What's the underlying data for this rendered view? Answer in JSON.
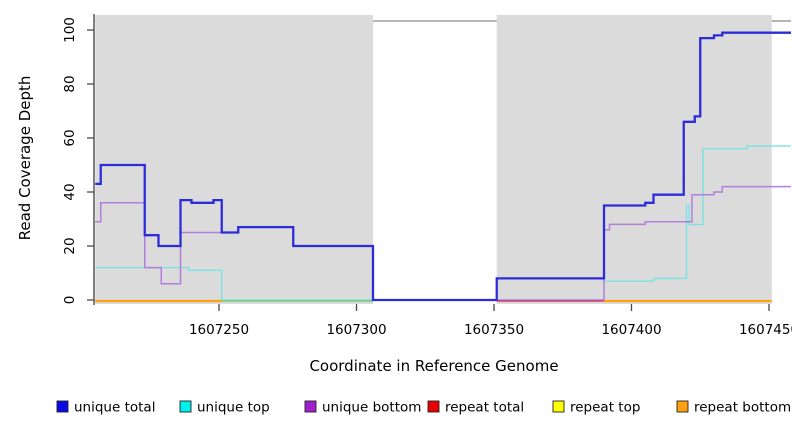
{
  "chart_data": {
    "type": "line",
    "subtype": "step-coverage-plot",
    "title": "",
    "xlabel": "Coordinate in Reference Genome",
    "ylabel": "Read Coverage Depth",
    "xlim": [
      1607205,
      1607458
    ],
    "ylim": [
      0,
      103
    ],
    "grid": "off",
    "plot_background": "#DBDBDB",
    "no_data_background": "#FFFFFF",
    "axis_color": "#4A4A4A",
    "x_ticks": [
      {
        "value": 1607250,
        "label": "1607250"
      },
      {
        "value": 1607300,
        "label": "1607300"
      },
      {
        "value": 1607350,
        "label": "1607350"
      },
      {
        "value": 1607400,
        "label": "1607400"
      },
      {
        "value": 1607450,
        "label": "1607450"
      }
    ],
    "y_ticks": [
      {
        "value": 0,
        "label": "0"
      },
      {
        "value": 20,
        "label": "20"
      },
      {
        "value": 40,
        "label": "40"
      },
      {
        "value": 60,
        "label": "60"
      },
      {
        "value": 80,
        "label": "80"
      },
      {
        "value": 100,
        "label": "100"
      }
    ],
    "coverage_regions": [
      [
        1607205,
        1607306
      ],
      [
        1607351,
        1607451
      ]
    ],
    "no_data_regions": [
      [
        1607306,
        1607351
      ]
    ],
    "series": [
      {
        "name": "unique total",
        "color": "#2C2CD8",
        "width": 2.3,
        "segments": [
          [
            1607205,
            1607207,
            43
          ],
          [
            1607207,
            1607223,
            50
          ],
          [
            1607223,
            1607228,
            24
          ],
          [
            1607228,
            1607236,
            20
          ],
          [
            1607236,
            1607240,
            37
          ],
          [
            1607240,
            1607248,
            36
          ],
          [
            1607248,
            1607251,
            37
          ],
          [
            1607251,
            1607257,
            25
          ],
          [
            1607257,
            1607277,
            27
          ],
          [
            1607277,
            1607306,
            20
          ],
          [
            1607306,
            1607351,
            0
          ],
          [
            1607351,
            1607390,
            8
          ],
          [
            1607390,
            1607405,
            35
          ],
          [
            1607405,
            1607408,
            36
          ],
          [
            1607408,
            1607419,
            39
          ],
          [
            1607419,
            1607423,
            66
          ],
          [
            1607423,
            1607425,
            68
          ],
          [
            1607425,
            1607430,
            97
          ],
          [
            1607430,
            1607433,
            98
          ],
          [
            1607433,
            1607458,
            99
          ]
        ]
      },
      {
        "name": "unique top",
        "color": "#7BE3E3",
        "width": 1.4,
        "segments": [
          [
            1607205,
            1607239,
            12
          ],
          [
            1607239,
            1607251,
            11
          ],
          [
            1607251,
            1607351,
            0
          ],
          [
            1607351,
            1607390,
            8
          ],
          [
            1607390,
            1607408,
            7
          ],
          [
            1607408,
            1607420,
            8
          ],
          [
            1607420,
            1607421,
            35
          ],
          [
            1607421,
            1607426,
            28
          ],
          [
            1607426,
            1607442,
            56
          ],
          [
            1607442,
            1607458,
            57
          ]
        ]
      },
      {
        "name": "unique bottom",
        "color": "#B27FDB",
        "width": 1.5,
        "segments": [
          [
            1607205,
            1607207,
            29
          ],
          [
            1607207,
            1607223,
            36
          ],
          [
            1607223,
            1607229,
            12
          ],
          [
            1607229,
            1607236,
            6
          ],
          [
            1607236,
            1607257,
            25
          ],
          [
            1607257,
            1607277,
            27
          ],
          [
            1607277,
            1607306,
            20
          ],
          [
            1607306,
            1607390,
            0
          ],
          [
            1607390,
            1607392,
            26
          ],
          [
            1607392,
            1607405,
            28
          ],
          [
            1607405,
            1607422,
            29
          ],
          [
            1607422,
            1607430,
            39
          ],
          [
            1607430,
            1607433,
            40
          ],
          [
            1607433,
            1607458,
            42
          ]
        ]
      },
      {
        "name": "repeat total",
        "color": "#E80000",
        "width": 1.6,
        "constant_value": 0,
        "segments": []
      },
      {
        "name": "repeat top",
        "color": "#FFFF00",
        "width": 1.6,
        "constant_value": 0,
        "segments": []
      },
      {
        "name": "repeat bottom",
        "color": "#FFA010",
        "width": 2.0,
        "constant_value": 0,
        "segments": []
      }
    ],
    "zero_line_segments": [
      {
        "from": 1607205,
        "to": 1607251,
        "color": "#FFA010",
        "width": 2.2
      },
      {
        "from": 1607251,
        "to": 1607306,
        "color": "#7CC87C",
        "width": 1.6
      },
      {
        "from": 1607351,
        "to": 1607390,
        "color": "#C84070",
        "width": 1.6
      },
      {
        "from": 1607390,
        "to": 1607451,
        "color": "#FFA010",
        "width": 2.2
      }
    ]
  },
  "legend": {
    "items": [
      {
        "label": "unique total",
        "color": "#0A0AE6"
      },
      {
        "label": "unique top",
        "color": "#00F0F0"
      },
      {
        "label": "unique bottom",
        "color": "#A21FD0"
      },
      {
        "label": "repeat total",
        "color": "#E80000"
      },
      {
        "label": "repeat top",
        "color": "#FFFF00"
      },
      {
        "label": "repeat bottom",
        "color": "#FFA010"
      }
    ]
  }
}
